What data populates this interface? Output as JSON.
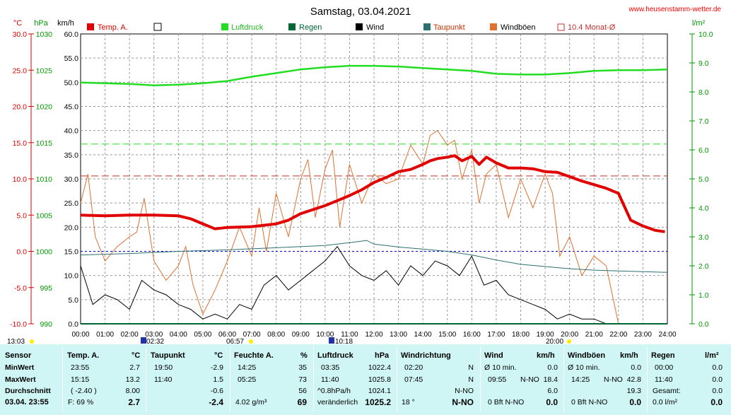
{
  "header": {
    "title": "Samstag, 03.04.2021",
    "website": "www.heusenstamm-wetter.de"
  },
  "axes": {
    "temp_unit": "°C",
    "pressure_unit": "hPa",
    "wind_unit": "km/h",
    "rain_unit": "l/m²",
    "temp_ticks": [
      "30.0",
      "25.0",
      "20.0",
      "15.0",
      "10.0",
      "5.0",
      "0.0",
      "-5.0",
      "-10.0"
    ],
    "pressure_ticks": [
      "1030",
      "1025",
      "1020",
      "1015",
      "1010",
      "1005",
      "1000",
      "995",
      "990"
    ],
    "wind_ticks": [
      "60.0",
      "55.0",
      "50.0",
      "45.0",
      "40.0",
      "35.0",
      "30.0",
      "25.0",
      "20.0",
      "15.0",
      "10.0",
      "5.0",
      "0.0"
    ],
    "rain_ticks": [
      "10.0",
      "9.0",
      "8.0",
      "7.0",
      "6.0",
      "5.0",
      "4.0",
      "3.0",
      "2.0",
      "1.0",
      "0.0"
    ],
    "time_ticks": [
      "00:00",
      "01:00",
      "02:00",
      "03:00",
      "04:00",
      "05:00",
      "06:00",
      "07:00",
      "08:00",
      "09:00",
      "10:00",
      "11:00",
      "12:00",
      "13:00",
      "14:00",
      "15:00",
      "16:00",
      "17:00",
      "18:00",
      "19:00",
      "20:00",
      "21:00",
      "22:00",
      "23:00",
      "24:00"
    ]
  },
  "markers": {
    "m1": "13:03",
    "m2": "02:32",
    "m3": "06:57",
    "m4": "10:18",
    "m5": "20:00"
  },
  "legend": {
    "temp": "Temp. A.",
    "pressure": "Luftdruck",
    "rain": "Regen",
    "wind": "Wind",
    "dewpoint": "Taupunkt",
    "gusts": "Windböen",
    "monthavg": "10.4 Monat-Ø"
  },
  "colors": {
    "temp": "#e00000",
    "pressure": "#22dd22",
    "rain": "#006633",
    "wind": "#000000",
    "dewpoint": "#2d7070",
    "gusts": "#e07030",
    "monthavg": "#c03030",
    "frost": "#0000cc",
    "temp_axis": "#dd0000",
    "green_axis": "#009900",
    "table_bg": "#cff5f5"
  },
  "chart_data": {
    "type": "line",
    "x_range": [
      "00:00",
      "24:00"
    ],
    "reference_lines": {
      "monthavg_temp_c": 10.4,
      "pressure_ref_hpa": 1014.8,
      "frost_line_c": 0.0
    },
    "temp_c": {
      "x": [
        0,
        1,
        2,
        3,
        4,
        4.5,
        5,
        5.5,
        6,
        7,
        7.5,
        8,
        8.5,
        9,
        10,
        10.5,
        11,
        11.5,
        12,
        12.5,
        13,
        13.5,
        14,
        14.3,
        14.6,
        15,
        15.3,
        15.6,
        16,
        16.3,
        16.6,
        17,
        17.5,
        18,
        18.5,
        19,
        19.5,
        20,
        20.5,
        21,
        21.5,
        22,
        22.5,
        23,
        23.5,
        23.9
      ],
      "y": [
        5.0,
        4.9,
        5.0,
        5.0,
        4.9,
        4.5,
        3.8,
        3.1,
        3.3,
        3.4,
        3.6,
        3.8,
        4.3,
        5.2,
        6.3,
        7.0,
        7.7,
        8.5,
        9.5,
        10.2,
        11.0,
        11.3,
        12.0,
        12.5,
        12.8,
        13.0,
        13.2,
        12.5,
        13.1,
        12.0,
        13.0,
        12.2,
        11.5,
        11.5,
        11.4,
        11.0,
        10.9,
        10.3,
        9.7,
        9.2,
        8.7,
        8.0,
        4.3,
        3.5,
        2.9,
        2.7
      ]
    },
    "pressure_hpa": {
      "x": [
        0,
        1,
        2,
        3,
        4,
        5,
        6,
        7,
        8,
        9,
        10,
        11,
        12,
        13,
        14,
        15,
        16,
        17,
        18,
        19,
        20,
        21,
        22,
        23,
        24
      ],
      "y": [
        1023.3,
        1023.2,
        1023.1,
        1022.9,
        1023.0,
        1023.2,
        1023.5,
        1024.1,
        1024.6,
        1025.1,
        1025.4,
        1025.6,
        1025.6,
        1025.5,
        1025.3,
        1025.1,
        1024.9,
        1024.5,
        1024.4,
        1024.4,
        1024.6,
        1024.9,
        1025.0,
        1025.0,
        1025.1
      ]
    },
    "dewpoint_c": {
      "x": [
        0,
        2,
        4,
        6,
        8,
        10,
        11,
        11.7,
        12,
        13,
        14,
        15,
        16,
        17,
        18,
        19,
        20,
        21,
        22,
        23,
        24
      ],
      "y": [
        -0.5,
        -0.3,
        0.0,
        0.2,
        0.5,
        0.8,
        1.2,
        1.5,
        1.0,
        0.6,
        0.3,
        0.0,
        -0.5,
        -1.2,
        -1.8,
        -2.1,
        -2.4,
        -2.6,
        -2.7,
        -2.8,
        -2.9
      ]
    },
    "wind_kmh": {
      "x": [
        0,
        0.5,
        1,
        1.5,
        2,
        2.5,
        3,
        3.5,
        4,
        4.5,
        5,
        5.5,
        6,
        6.5,
        7,
        7.5,
        8,
        8.5,
        9,
        9.5,
        10,
        10.5,
        11,
        11.5,
        12,
        12.5,
        13,
        13.5,
        14,
        14.5,
        15,
        15.5,
        16,
        16.5,
        17,
        17.5,
        18,
        18.5,
        19,
        19.5,
        20,
        20.5,
        21,
        21.5,
        22
      ],
      "y": [
        12,
        4,
        6,
        5,
        3,
        9,
        7,
        6,
        4,
        3,
        1,
        2,
        1,
        4,
        3,
        8,
        10,
        7,
        9,
        11,
        13,
        16,
        12,
        10,
        9,
        11,
        8,
        12,
        10,
        13,
        12,
        10,
        14,
        8,
        9,
        6,
        5,
        4,
        3,
        1,
        2,
        1,
        1,
        0,
        0
      ]
    },
    "gusts_kmh": {
      "x": [
        0,
        0.3,
        0.6,
        1,
        1.5,
        2,
        2.3,
        2.6,
        3,
        3.5,
        4,
        4.3,
        4.6,
        5,
        5.5,
        6,
        6.5,
        7,
        7.3,
        7.6,
        8,
        8.5,
        9,
        9.3,
        9.6,
        10,
        10.3,
        10.6,
        11,
        11.5,
        12,
        12.5,
        13,
        13.5,
        14,
        14.3,
        14.6,
        15,
        15.3,
        15.6,
        16,
        16.3,
        16.6,
        17,
        17.5,
        18,
        18.5,
        19,
        19.3,
        19.6,
        20,
        20.5,
        21,
        21.5,
        22
      ],
      "y": [
        25,
        31,
        18,
        13,
        16,
        18,
        19,
        26,
        13,
        9,
        12,
        16,
        8,
        2,
        7,
        13,
        20,
        14,
        24,
        15,
        27,
        18,
        30,
        34,
        22,
        32,
        36,
        20,
        33,
        25,
        31,
        29,
        30,
        37,
        33,
        39,
        40,
        37,
        38,
        30,
        36,
        25,
        31,
        33,
        22,
        30,
        24,
        31,
        27,
        14,
        18,
        10,
        14,
        12,
        0
      ]
    },
    "rain_lm2": {
      "total": 0.0
    }
  },
  "table": {
    "headers": {
      "sensor": "Sensor",
      "temp": "Temp. A.",
      "temp_u": "°C",
      "dew": "Taupunkt",
      "dew_u": "°C",
      "hum": "Feuchte A.",
      "hum_u": "%",
      "press": "Luftdruck",
      "press_u": "hPa",
      "dir": "Windrichtung",
      "wind": "Wind",
      "wind_u": "km/h",
      "gust": "Windböen",
      "gust_u": "km/h",
      "rain": "Regen",
      "rain_u": "l/m²"
    },
    "rows": {
      "min": "MinWert",
      "max": "MaxWert",
      "avg": "Durchschnitt",
      "cur": "03.04. 23:55"
    },
    "temp": {
      "min_time": "23:55",
      "min_val": "2.7",
      "max_time": "15:15",
      "max_val": "13.2",
      "avg_time": "( -2.40 )",
      "avg_val": "8.00",
      "cur_info": "F: 69 %",
      "cur_val": "2.7"
    },
    "dew": {
      "min_time": "19:50",
      "min_val": "-2.9",
      "max_time": "11:40",
      "max_val": "1.5",
      "avg_val": "-0.6",
      "cur_val": "-2.4"
    },
    "hum": {
      "min_time": "14:25",
      "min_val": "35",
      "max_time": "05:25",
      "max_val": "73",
      "avg_val": "56",
      "cur_info": "4.02 g/m³",
      "cur_val": "69"
    },
    "press": {
      "min_time": "03:35",
      "min_val": "1022.4",
      "max_time": "11:40",
      "max_val": "1025.8",
      "avg_time": "^0.8hPa/h",
      "avg_val": "1024.1",
      "cur_info": "veränderlich",
      "cur_val": "1025.2"
    },
    "dir": {
      "min_time": "02:20",
      "min_val": "N",
      "max_time": "07:45",
      "max_val": "N",
      "avg_val": "N-NO",
      "cur_info": "18 °",
      "cur_val": "N-NO"
    },
    "wind": {
      "min_label": "Ø 10 min.",
      "min_val": "0.0",
      "max_time": "09:55",
      "max_dir": "N-NO",
      "max_val": "18.4",
      "avg_val": "6.0",
      "cur_info": "0 Bft N-NO",
      "cur_val": "0.0"
    },
    "gust": {
      "min_label": "Ø 10 min.",
      "min_val": "0.0",
      "max_time": "14:25",
      "max_dir": "N-NO",
      "max_val": "42.8",
      "avg_val": "19.3",
      "cur_info": "0 Bft N-NO",
      "cur_val": "0.0"
    },
    "rain": {
      "min_time": "00:00",
      "min_val": "0.0",
      "max_time": "11:40",
      "max_val": "0.0",
      "avg_label": "Gesamt:",
      "avg_val": "0.0",
      "cur_info": "0.0 l/m²",
      "cur_val": "0.0"
    }
  }
}
